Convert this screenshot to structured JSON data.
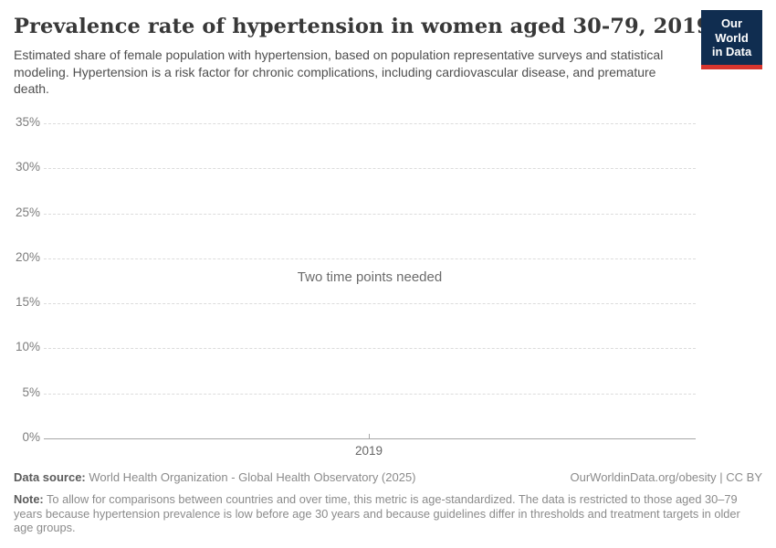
{
  "header": {
    "title": "Prevalence rate of hypertension in women aged 30-79, 2019",
    "subtitle": "Estimated share of female population with hypertension, based on population representative surveys and statistical modeling. Hypertension is a risk factor for chronic complications, including cardiovascular disease, and premature death.",
    "logo": {
      "line1": "Our World",
      "line2": "in Data",
      "bg_color": "#102d50",
      "accent_color": "#d8352e"
    }
  },
  "chart_data": {
    "type": "line",
    "title": "Prevalence rate of hypertension in women aged 30-79, 2019",
    "series": [],
    "empty_state_message": "Two time points needed",
    "x_ticks": [
      "2019"
    ],
    "y_ticks": [
      "35%",
      "30%",
      "25%",
      "20%",
      "15%",
      "10%",
      "5%",
      "0%"
    ],
    "ylim": [
      0,
      35
    ],
    "ylabel": "",
    "xlabel": "",
    "grid": "horizontal-dashed",
    "legend": "none"
  },
  "footer": {
    "data_source_label": "Data source:",
    "data_source_value": " World Health Organization - Global Health Observatory (2025)",
    "link_text": "OurWorldinData.org/obesity | CC BY",
    "note_label": "Note:",
    "note_text": " To allow for comparisons between countries and over time, this metric is age-standardized. The data is restricted to those aged 30–79 years because hypertension prevalence is low before age 30 years and because guidelines differ in thresholds and treatment targets in older age groups."
  }
}
